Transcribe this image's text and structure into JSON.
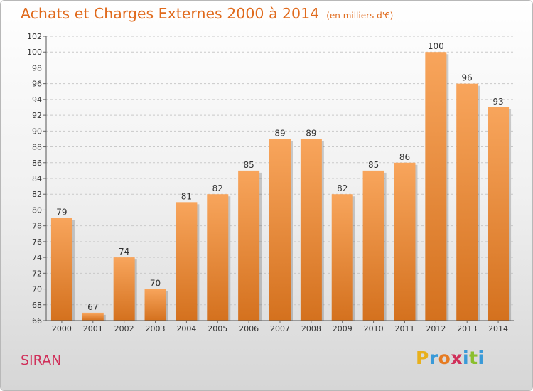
{
  "title": "Achats et Charges Externes 2000 à 2014",
  "unit": "(en milliers d'€)",
  "commune": "SIRAN",
  "logo": {
    "letters": [
      "P",
      "r",
      "o",
      "x",
      "i",
      "t",
      "i"
    ],
    "colors": [
      "#e8b01c",
      "#3a9ad8",
      "#e67b22",
      "#d0305a",
      "#3a9ad8",
      "#8bbf2e",
      "#3a9ad8"
    ]
  },
  "colors": {
    "bar_top": "#f8a55c",
    "bar_bottom": "#d4711e",
    "accent": "#e06a1c"
  },
  "chart_data": {
    "type": "bar",
    "categories": [
      "2000",
      "2001",
      "2002",
      "2003",
      "2004",
      "2005",
      "2006",
      "2007",
      "2008",
      "2009",
      "2010",
      "2011",
      "2012",
      "2013",
      "2014"
    ],
    "values": [
      79,
      67,
      74,
      70,
      81,
      82,
      85,
      89,
      89,
      82,
      85,
      86,
      100,
      96,
      93
    ],
    "ylim": [
      66,
      102
    ],
    "yticks": [
      66,
      68,
      70,
      72,
      74,
      76,
      78,
      80,
      82,
      84,
      86,
      88,
      90,
      92,
      94,
      96,
      98,
      100,
      102
    ],
    "grid": true
  }
}
